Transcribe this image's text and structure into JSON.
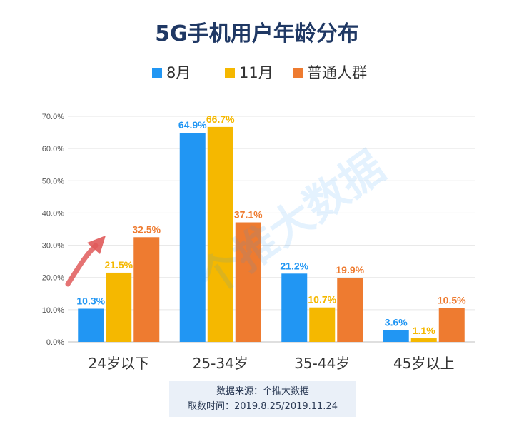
{
  "chart_data": {
    "type": "bar",
    "title": "5G手机用户年龄分布",
    "categories": [
      "24岁以下",
      "25-34岁",
      "35-44岁",
      "45岁以上"
    ],
    "series": [
      {
        "name": "8月",
        "color": "#2196f3",
        "values": [
          10.3,
          64.9,
          21.2,
          3.6
        ],
        "labels": [
          "10.3%",
          "64.9%",
          "21.2%",
          "3.6%"
        ]
      },
      {
        "name": "11月",
        "color": "#f5b800",
        "values": [
          21.5,
          66.7,
          10.7,
          1.1
        ],
        "labels": [
          "21.5%",
          "66.7%",
          "10.7%",
          "1.1%"
        ]
      },
      {
        "name": "普通人群",
        "color": "#ee7b30",
        "values": [
          32.5,
          37.1,
          19.9,
          10.5
        ],
        "labels": [
          "32.5%",
          "37.1%",
          "19.9%",
          "10.5%"
        ]
      }
    ],
    "yticks": [
      "0.0%",
      "10.0%",
      "20.0%",
      "30.0%",
      "40.0%",
      "50.0%",
      "60.0%",
      "70.0%"
    ],
    "ylim": [
      0,
      70
    ],
    "grid": true,
    "legend": "top-center",
    "watermark": "个推大数据",
    "annotation": "red upward arrow pointing to 24岁以下 普通人群"
  },
  "source": {
    "line1": "数据来源：个推大数据",
    "line2": "取数时间：2019.8.25/2019.11.24"
  }
}
